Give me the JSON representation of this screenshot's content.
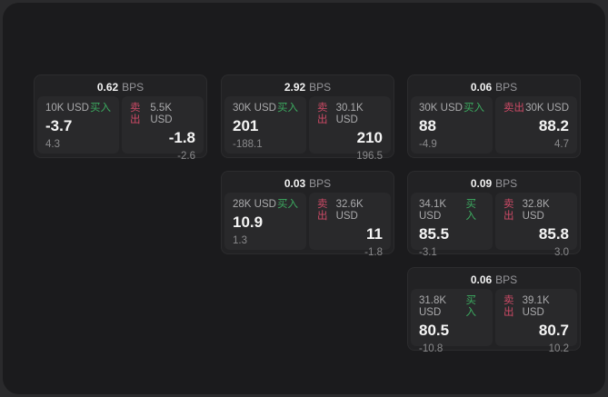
{
  "labels": {
    "bps_unit": "BPS",
    "buy": "买入",
    "sell": "卖出"
  },
  "colors": {
    "buy_green": "#3cab60",
    "sell_rose": "#cd4a66",
    "panel_bg": "#1b1b1d",
    "card_bg": "#222224",
    "tile_bg": "#29292b"
  },
  "cards": [
    {
      "bps": "0.62",
      "buy": {
        "amount": "10K USD",
        "price": "-3.7",
        "delta": "4.3"
      },
      "sell": {
        "amount": "5.5K USD",
        "price": "-1.8",
        "delta": "-2.6"
      }
    },
    {
      "bps": "2.92",
      "buy": {
        "amount": "30K USD",
        "price": "201",
        "delta": "-188.1"
      },
      "sell": {
        "amount": "30.1K USD",
        "price": "210",
        "delta": "196.5"
      }
    },
    {
      "bps": "0.06",
      "buy": {
        "amount": "30K USD",
        "price": "88",
        "delta": "-4.9"
      },
      "sell": {
        "amount": "30K USD",
        "price": "88.2",
        "delta": "4.7"
      }
    },
    {
      "bps": "0.03",
      "buy": {
        "amount": "28K USD",
        "price": "10.9",
        "delta": "1.3"
      },
      "sell": {
        "amount": "32.6K USD",
        "price": "11",
        "delta": "-1.8"
      }
    },
    {
      "bps": "0.09",
      "buy": {
        "amount": "34.1K USD",
        "price": "85.5",
        "delta": "-3.1"
      },
      "sell": {
        "amount": "32.8K USD",
        "price": "85.8",
        "delta": "3.0"
      }
    },
    {
      "bps": "0.06",
      "buy": {
        "amount": "31.8K USD",
        "price": "80.5",
        "delta": "-10.8"
      },
      "sell": {
        "amount": "39.1K USD",
        "price": "80.7",
        "delta": "10.2"
      }
    }
  ]
}
